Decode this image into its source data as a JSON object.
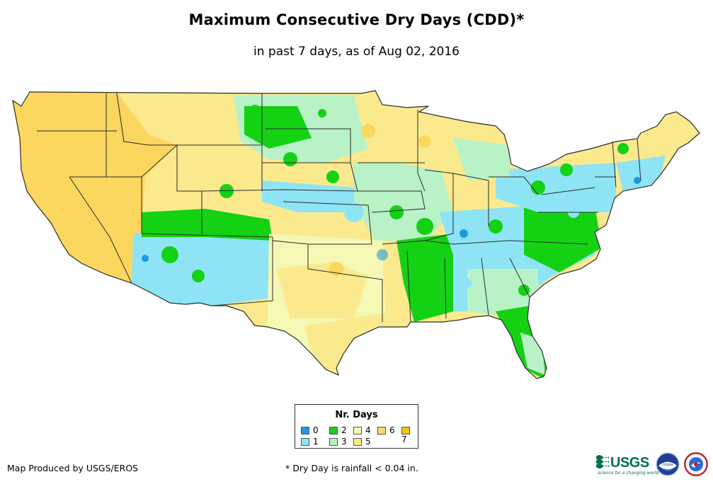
{
  "title": "Maximum Consecutive Dry Days (CDD)*",
  "subtitle": "in past 7 days, as of Aug 02, 2016",
  "map": {
    "region": "Contiguous United States",
    "colors": {
      "0": "#1a9be0",
      "1": "#8ee4f5",
      "2": "#14d114",
      "3": "#b8f2c6",
      "4": "#f4f8b4",
      "5": "#fbe98e",
      "6": "#fbd75f",
      "7": "#fcc00a",
      "border": "#2a2a2a"
    }
  },
  "legend": {
    "title": "Nr. Days",
    "items": [
      {
        "label": "0",
        "color": "#1a9be0"
      },
      {
        "label": "1",
        "color": "#8ee4f5"
      },
      {
        "label": "2",
        "color": "#14d114"
      },
      {
        "label": "3",
        "color": "#b8f2c6"
      },
      {
        "label": "4",
        "color": "#f4f8b4"
      },
      {
        "label": "5",
        "color": "#fbe98e"
      },
      {
        "label": "6",
        "color": "#fbd75f"
      },
      {
        "label": "7",
        "color": "#fcc00a"
      }
    ]
  },
  "footer": {
    "producer": "Map Produced by USGS/EROS",
    "note": "* Dry Day is rainfall < 0.04 in."
  },
  "logos": {
    "usgs": "USGS",
    "usgs_tagline": "science for a changing world",
    "noaa": "noaa",
    "nws": "National Weather Service"
  }
}
